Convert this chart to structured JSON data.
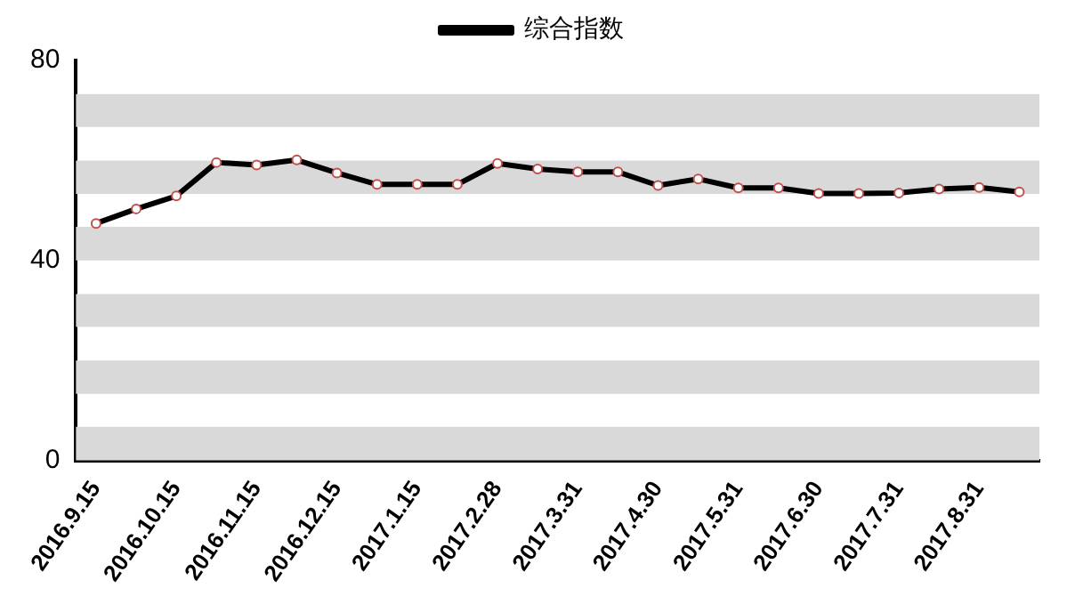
{
  "chart_data": {
    "type": "line",
    "categories": [
      "2016.9.15",
      null,
      "2016.10.15",
      null,
      "2016.11.15",
      null,
      "2016.12.15",
      null,
      "2017.1.15",
      null,
      "2017.2.28",
      null,
      "2017.3.31",
      null,
      "2017.4.30",
      null,
      "2017.5.31",
      null,
      "2017.6.30",
      null,
      "2017.7.31",
      null,
      "2017.8.31",
      null
    ],
    "series": [
      {
        "name": "综合指数",
        "color": "#000000",
        "values": [
          47.4,
          50.3,
          52.9,
          59.6,
          59.1,
          60.1,
          57.5,
          55.2,
          55.2,
          55.2,
          59.4,
          58.3,
          57.7,
          57.7,
          55.0,
          56.3,
          54.5,
          54.5,
          53.4,
          53.4,
          53.5,
          54.3,
          54.6,
          53.7
        ]
      }
    ],
    "bands": [
      {
        "axis": "y",
        "from": 0,
        "to": 6.7,
        "color": "#d9d9d9"
      },
      {
        "axis": "y",
        "from": 13.3,
        "to": 20,
        "color": "#d9d9d9"
      },
      {
        "axis": "y",
        "from": 26.7,
        "to": 33.3,
        "color": "#d9d9d9"
      },
      {
        "axis": "y",
        "from": 40,
        "to": 46.7,
        "color": "#d9d9d9"
      },
      {
        "axis": "y",
        "from": 53.3,
        "to": 60,
        "color": "#d9d9d9"
      },
      {
        "axis": "y",
        "from": 66.7,
        "to": 73.3,
        "color": "#d9d9d9"
      }
    ],
    "ylim": [
      0,
      80
    ],
    "yticks": [
      0,
      40,
      80
    ],
    "grid": false,
    "legend": "top",
    "marker": "circle",
    "line_style": "solid"
  }
}
